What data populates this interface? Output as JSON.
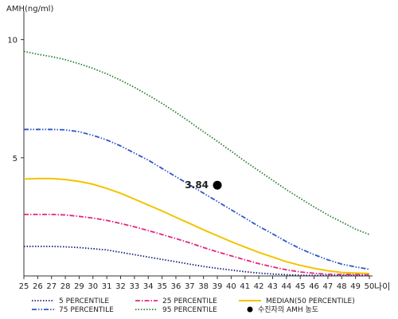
{
  "chart_data": {
    "type": "line",
    "ylabel": "AMH(ng/ml)",
    "xlabel": "",
    "x_unit_label": "나이",
    "x": [
      25,
      26,
      27,
      28,
      29,
      30,
      31,
      32,
      33,
      34,
      35,
      36,
      37,
      38,
      39,
      40,
      41,
      42,
      43,
      44,
      45,
      46,
      47,
      48,
      49,
      50
    ],
    "xlim": [
      25,
      50
    ],
    "ylim": [
      0,
      11
    ],
    "yticks": [
      5,
      10
    ],
    "grid": false,
    "legend_position": "bottom",
    "series": [
      {
        "name": "5 PERCENTILE",
        "color": "#1a237e",
        "style": "dotted",
        "values": [
          1.25,
          1.25,
          1.25,
          1.23,
          1.2,
          1.15,
          1.1,
          1.0,
          0.9,
          0.8,
          0.7,
          0.6,
          0.5,
          0.4,
          0.32,
          0.25,
          0.18,
          0.12,
          0.08,
          0.05,
          0.03,
          0.02,
          0.02,
          0.02,
          0.02,
          0.03
        ]
      },
      {
        "name": "25 PERCENTILE",
        "color": "#e0287f",
        "style": "dashdot",
        "values": [
          2.6,
          2.6,
          2.6,
          2.58,
          2.52,
          2.45,
          2.35,
          2.22,
          2.08,
          1.92,
          1.75,
          1.58,
          1.4,
          1.2,
          1.02,
          0.85,
          0.68,
          0.52,
          0.38,
          0.26,
          0.17,
          0.11,
          0.07,
          0.06,
          0.06,
          0.06
        ]
      },
      {
        "name": "MEDIAN(50 PERCENTILE)",
        "color": "#f2c400",
        "style": "solid",
        "values": [
          4.1,
          4.12,
          4.12,
          4.08,
          4.0,
          3.88,
          3.7,
          3.5,
          3.25,
          3.0,
          2.75,
          2.48,
          2.22,
          1.95,
          1.7,
          1.45,
          1.22,
          1.0,
          0.8,
          0.6,
          0.45,
          0.32,
          0.22,
          0.15,
          0.12,
          0.1
        ]
      },
      {
        "name": "75 PERCENTILE",
        "color": "#2f56c8",
        "style": "dashdotdot",
        "values": [
          6.2,
          6.2,
          6.2,
          6.18,
          6.1,
          5.95,
          5.75,
          5.5,
          5.2,
          4.9,
          4.55,
          4.2,
          3.85,
          3.5,
          3.15,
          2.8,
          2.45,
          2.1,
          1.78,
          1.45,
          1.15,
          0.9,
          0.68,
          0.5,
          0.38,
          0.28
        ]
      },
      {
        "name": "95 PERCENTILE",
        "color": "#2e7d32",
        "style": "dotted",
        "values": [
          9.5,
          9.38,
          9.28,
          9.15,
          8.98,
          8.78,
          8.55,
          8.28,
          7.98,
          7.65,
          7.3,
          6.92,
          6.52,
          6.1,
          5.7,
          5.28,
          4.85,
          4.45,
          4.05,
          3.65,
          3.28,
          2.92,
          2.58,
          2.28,
          1.98,
          1.75
        ]
      }
    ],
    "patient": {
      "name": "수진자의 AMH 농도",
      "x": 39,
      "y": 3.84,
      "label": "3.84",
      "color": "#000000"
    }
  }
}
